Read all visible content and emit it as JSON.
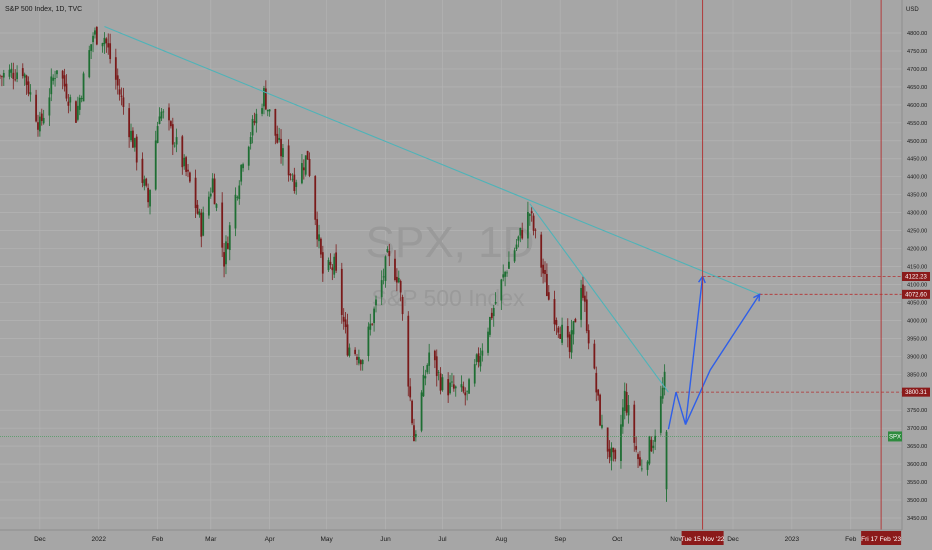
{
  "header": {
    "title": "S&P 500 Index, 1D, TVC"
  },
  "watermark": {
    "symbol": "SPX, 1D",
    "name": "S&P 500 Index"
  },
  "currency": "USD",
  "colors": {
    "background": "#a6a6a6",
    "grid": "#b3b3b3",
    "up": "#1e6e33",
    "down": "#7a1a1a",
    "trendline": "#4fb3b8",
    "projection": "#2f5fe8",
    "marker_red": "#8b1a1a",
    "marker_red_line": "#b33030",
    "spx_badge": "#2e8b3e",
    "text": "#1a1a1a"
  },
  "axis": {
    "y_ticks": [
      "4800.00",
      "4750.00",
      "4700.00",
      "4650.00",
      "4600.00",
      "4550.00",
      "4500.00",
      "4450.00",
      "4400.00",
      "4350.00",
      "4300.00",
      "4250.00",
      "4200.00",
      "4150.00",
      "4100.00",
      "4050.00",
      "4000.00",
      "3950.00",
      "3900.00",
      "3850.00",
      "3750.00",
      "3700.00",
      "3650.00",
      "3600.00",
      "3550.00",
      "3500.00",
      "3450.00"
    ],
    "x_ticks": [
      "Dec",
      "2022",
      "Feb",
      "Mar",
      "Apr",
      "May",
      "Jun",
      "Jul",
      "Aug",
      "Sep",
      "Oct",
      "Nov",
      "Dec",
      "2023",
      "Feb"
    ]
  },
  "price_labels": [
    {
      "id": "level-4122",
      "text": "4122.23"
    },
    {
      "id": "level-4072",
      "text": "4072.60"
    },
    {
      "id": "level-3800",
      "text": "3800.31"
    }
  ],
  "spx_label": "SPX",
  "date_markers": [
    "Tue 15 Nov '22",
    "Fri 17 Feb '23"
  ],
  "chart_data": {
    "type": "candlestick",
    "title": "S&P 500 Index, 1D, TVC",
    "ylabel": "USD",
    "ylim": [
      3430,
      4860
    ],
    "x_range": [
      "2021-11-10",
      "2023-02-28"
    ],
    "price_path": [
      [
        "2021-11-10",
        4680
      ],
      [
        "2021-11-22",
        4700
      ],
      [
        "2021-12-01",
        4540
      ],
      [
        "2021-12-10",
        4710
      ],
      [
        "2021-12-20",
        4570
      ],
      [
        "2021-12-29",
        4795
      ],
      [
        "2022-01-04",
        4790
      ],
      [
        "2022-01-10",
        4670
      ],
      [
        "2022-01-20",
        4480
      ],
      [
        "2022-01-27",
        4330
      ],
      [
        "2022-02-02",
        4590
      ],
      [
        "2022-02-10",
        4500
      ],
      [
        "2022-02-18",
        4380
      ],
      [
        "2022-02-24",
        4260
      ],
      [
        "2022-03-02",
        4390
      ],
      [
        "2022-03-08",
        4170
      ],
      [
        "2022-03-18",
        4460
      ],
      [
        "2022-03-29",
        4630
      ],
      [
        "2022-04-06",
        4480
      ],
      [
        "2022-04-14",
        4390
      ],
      [
        "2022-04-21",
        4460
      ],
      [
        "2022-04-29",
        4130
      ],
      [
        "2022-05-05",
        4150
      ],
      [
        "2022-05-12",
        3930
      ],
      [
        "2022-05-20",
        3900
      ],
      [
        "2022-06-02",
        4170
      ],
      [
        "2022-06-08",
        4120
      ],
      [
        "2022-06-16",
        3670
      ],
      [
        "2022-06-24",
        3910
      ],
      [
        "2022-07-01",
        3820
      ],
      [
        "2022-07-14",
        3790
      ],
      [
        "2022-07-27",
        4020
      ],
      [
        "2022-08-04",
        4150
      ],
      [
        "2022-08-16",
        4300
      ],
      [
        "2022-08-26",
        4060
      ],
      [
        "2022-09-06",
        3910
      ],
      [
        "2022-09-12",
        4110
      ],
      [
        "2022-09-23",
        3690
      ],
      [
        "2022-09-30",
        3590
      ],
      [
        "2022-10-05",
        3790
      ],
      [
        "2022-10-13",
        3590
      ],
      [
        "2022-10-20",
        3670
      ],
      [
        "2022-10-26",
        3830
      ]
    ],
    "trendlines": [
      {
        "from": [
          "2022-01-04",
          4818
        ],
        "to": [
          "2022-12-15",
          4072.6
        ]
      },
      {
        "from": [
          "2022-08-16",
          4325
        ],
        "to": [
          "2022-10-28",
          3800.31
        ]
      }
    ],
    "projection_path": [
      [
        "2022-10-28",
        3697
      ],
      [
        "2022-11-01",
        3800.31
      ],
      [
        "2022-11-06",
        3710
      ],
      [
        "2022-11-15",
        4122.23
      ],
      [
        "2022-11-19",
        3862
      ],
      [
        "2022-12-15",
        4072.6
      ]
    ],
    "levels": [
      4122.23,
      4072.6,
      3800.31
    ],
    "last_price": 3677,
    "vertical_markers": [
      "2022-11-15",
      "2023-02-17"
    ]
  }
}
